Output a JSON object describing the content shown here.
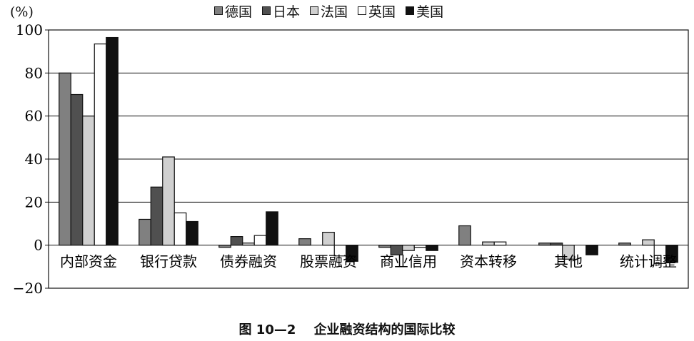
{
  "chart_data": {
    "type": "bar",
    "unit_label": "(%)",
    "categories": [
      "内部资金",
      "银行贷款",
      "债券融资",
      "股票融资",
      "商业信用",
      "资本转移",
      "其他",
      "统计调整"
    ],
    "series": [
      {
        "name": "德国",
        "color": "#808080",
        "values": [
          80,
          12,
          -1,
          3,
          -1,
          9,
          1,
          1
        ]
      },
      {
        "name": "日本",
        "color": "#505050",
        "values": [
          70,
          27,
          4,
          0,
          -4.5,
          0,
          1,
          0
        ]
      },
      {
        "name": "法国",
        "color": "#d0d0d0",
        "values": [
          60,
          41,
          1,
          6,
          -2.5,
          1.5,
          -6.5,
          2.5
        ]
      },
      {
        "name": "英国",
        "color": "#ffffff",
        "values": [
          93.5,
          15,
          4.5,
          -5,
          -1,
          1.5,
          0,
          -8.5
        ]
      },
      {
        "name": "美国",
        "color": "#111111",
        "values": [
          96.5,
          11,
          15.5,
          -7.5,
          -2.5,
          0,
          -4.5,
          -8
        ]
      }
    ],
    "yticks": [
      "100",
      "80",
      "60",
      "40",
      "20",
      "0",
      "−20"
    ],
    "ylim": [
      -20,
      100
    ],
    "grid": true,
    "legend_position": "top",
    "title": ""
  },
  "caption": {
    "figure_no": "图 10—2",
    "text": "企业融资结构的国际比较"
  }
}
